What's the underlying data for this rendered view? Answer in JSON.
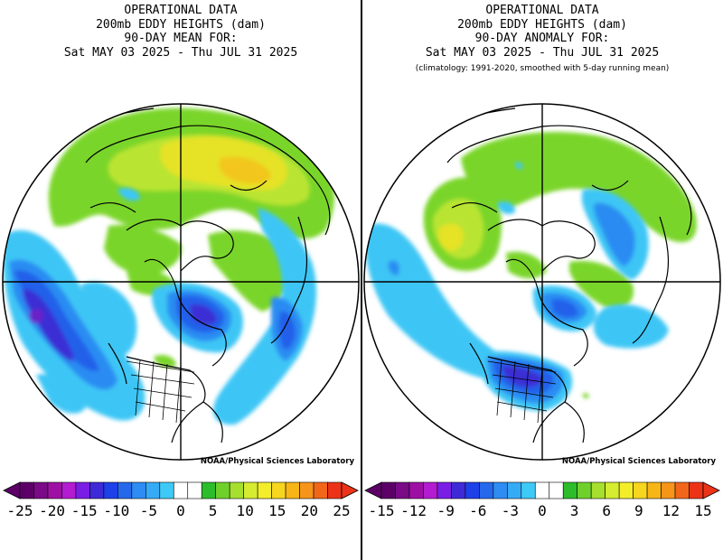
{
  "colors": {
    "deep_purple": "#5a1db0",
    "purple": "#3a2dd2",
    "blue_dark": "#1d39e8",
    "blue": "#2466ee",
    "blue_mid": "#2f8ff3",
    "blue_light": "#38c4f4",
    "green_light": "#86e02c",
    "green": "#6ad026",
    "yellow": "#e8e228",
    "yellow_orange": "#f1c30f",
    "scale_neg": [
      "#5c0068",
      "#7a0a86",
      "#9e10a3",
      "#b31cd0",
      "#7a1ee6",
      "#3f2ad8",
      "#1e40e8",
      "#2568ec",
      "#2e8cf2",
      "#36abf5",
      "#3ec9f6"
    ],
    "scale_pos": [
      "#2dbd2a",
      "#6fd02c",
      "#a6df2e",
      "#d6ec30",
      "#f4ee2a",
      "#f6d61e",
      "#f7b516",
      "#f6951a",
      "#f2661a",
      "#ec3318"
    ]
  },
  "panels": [
    {
      "title_lines": [
        "OPERATIONAL DATA",
        "200mb EDDY HEIGHTS (dam)",
        "90-DAY MEAN FOR:",
        "Sat MAY 03 2025 - Thu JUL 31 2025"
      ],
      "note": "",
      "credit": "NOAA/Physical Sciences Laboratory",
      "tick_labels": [
        "-25",
        "-20",
        "-15",
        "-10",
        "-5",
        "0",
        "5",
        "10",
        "15",
        "20",
        "25"
      ]
    },
    {
      "title_lines": [
        "OPERATIONAL DATA",
        "200mb EDDY HEIGHTS (dam)",
        "90-DAY ANOMALY FOR:",
        "Sat MAY 03 2025 - Thu JUL 31 2025"
      ],
      "note": "(climatology: 1991-2020, smoothed with 5-day running mean)",
      "credit": "NOAA/Physical Sciences Laboratory",
      "tick_labels": [
        "-15",
        "-12",
        "-9",
        "-6",
        "-3",
        "0",
        "3",
        "6",
        "9",
        "12",
        "15"
      ]
    }
  ]
}
